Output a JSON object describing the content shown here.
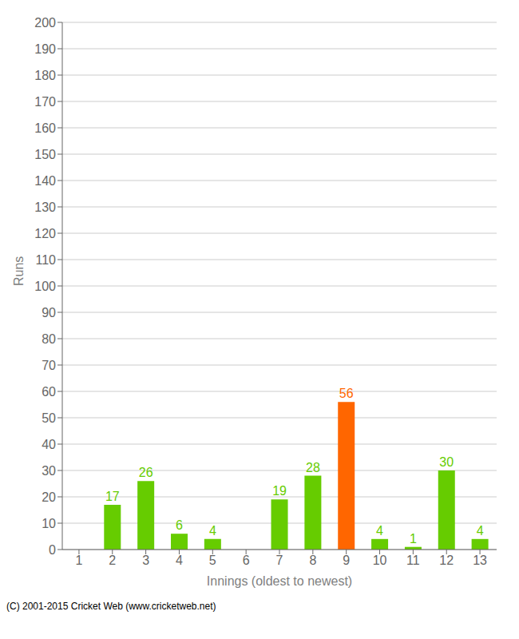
{
  "chart_data": {
    "type": "bar",
    "categories": [
      "1",
      "2",
      "3",
      "4",
      "5",
      "6",
      "7",
      "8",
      "9",
      "10",
      "11",
      "12",
      "13"
    ],
    "values": [
      0,
      17,
      26,
      6,
      4,
      0,
      19,
      28,
      56,
      4,
      1,
      30,
      4
    ],
    "colors": [
      "#66cc00",
      "#66cc00",
      "#66cc00",
      "#66cc00",
      "#66cc00",
      "#66cc00",
      "#66cc00",
      "#66cc00",
      "#ff6600",
      "#66cc00",
      "#66cc00",
      "#66cc00",
      "#66cc00"
    ],
    "xlabel": "Innings (oldest to newest)",
    "ylabel": "Runs",
    "ylim": [
      0,
      200
    ],
    "yticks": [
      0,
      10,
      20,
      30,
      40,
      50,
      60,
      70,
      80,
      90,
      100,
      110,
      120,
      130,
      140,
      150,
      160,
      170,
      180,
      190,
      200
    ],
    "grid": true,
    "data_labels": true,
    "annotations": [
      "(C) 2001-2015 Cricket Web (www.cricketweb.net)"
    ]
  }
}
